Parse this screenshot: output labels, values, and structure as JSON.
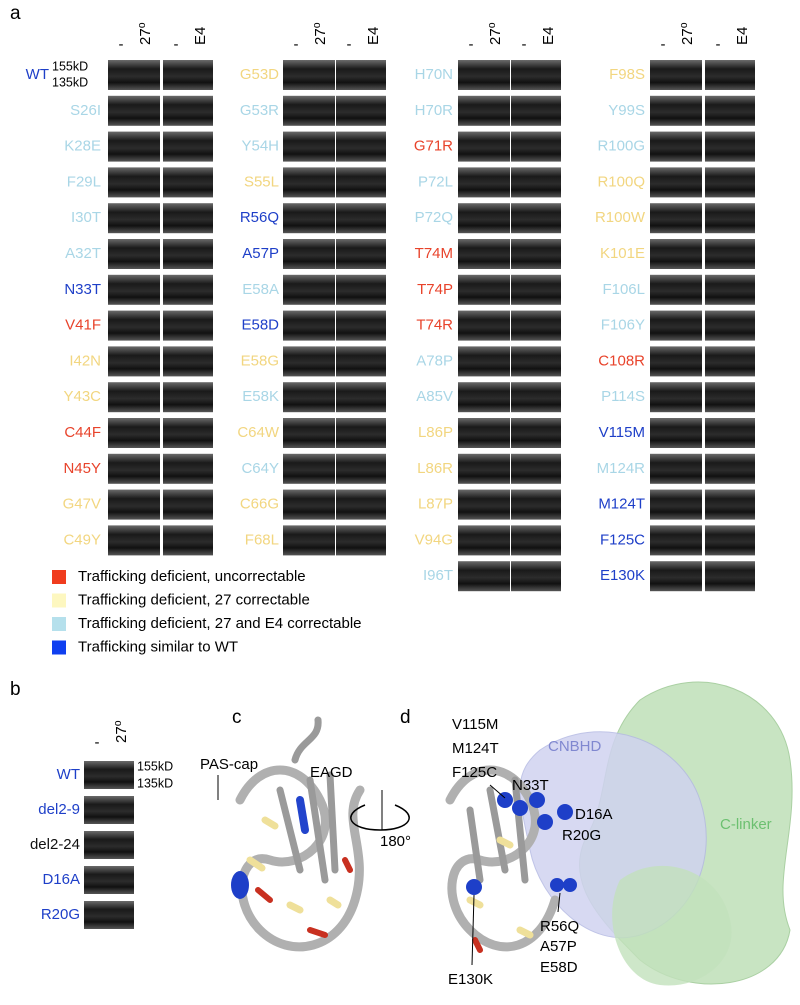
{
  "panel_a": {
    "label": "a",
    "wt_size_markers": [
      "155kD",
      "135kD"
    ],
    "columns": [
      {
        "headers": [
          "-",
          "27⁰",
          "-",
          "E4"
        ],
        "rows": [
          {
            "name": "WT",
            "color": "#1e3fc8"
          },
          {
            "name": "S26I",
            "color": "#a9d6e6"
          },
          {
            "name": "K28E",
            "color": "#a9d6e6"
          },
          {
            "name": "F29L",
            "color": "#a9d6e6"
          },
          {
            "name": "I30T",
            "color": "#a9d6e6"
          },
          {
            "name": "A32T",
            "color": "#a9d6e6"
          },
          {
            "name": "N33T",
            "color": "#1e3fc8"
          },
          {
            "name": "V41F",
            "color": "#e8432b"
          },
          {
            "name": "I42N",
            "color": "#f2d680"
          },
          {
            "name": "Y43C",
            "color": "#f2d680"
          },
          {
            "name": "C44F",
            "color": "#e8432b"
          },
          {
            "name": "N45Y",
            "color": "#e8432b"
          },
          {
            "name": "G47V",
            "color": "#f2d680"
          },
          {
            "name": "C49Y",
            "color": "#f2d680"
          }
        ]
      },
      {
        "headers": [
          "-",
          "27⁰",
          "-",
          "E4"
        ],
        "rows": [
          {
            "name": "G53D",
            "color": "#f2d680"
          },
          {
            "name": "G53R",
            "color": "#a9d6e6"
          },
          {
            "name": "Y54H",
            "color": "#a9d6e6"
          },
          {
            "name": "S55L",
            "color": "#f2d680"
          },
          {
            "name": "R56Q",
            "color": "#1e3fc8"
          },
          {
            "name": "A57P",
            "color": "#1e3fc8"
          },
          {
            "name": "E58A",
            "color": "#a9d6e6"
          },
          {
            "name": "E58D",
            "color": "#1e3fc8"
          },
          {
            "name": "E58G",
            "color": "#f2d680"
          },
          {
            "name": "E58K",
            "color": "#a9d6e6"
          },
          {
            "name": "C64W",
            "color": "#f2d680"
          },
          {
            "name": "C64Y",
            "color": "#a9d6e6"
          },
          {
            "name": "C66G",
            "color": "#f2d680"
          },
          {
            "name": "F68L",
            "color": "#f2d680"
          }
        ]
      },
      {
        "headers": [
          "-",
          "27⁰",
          "-",
          "E4"
        ],
        "rows": [
          {
            "name": "H70N",
            "color": "#a9d6e6"
          },
          {
            "name": "H70R",
            "color": "#a9d6e6"
          },
          {
            "name": "G71R",
            "color": "#e8432b"
          },
          {
            "name": "P72L",
            "color": "#a9d6e6"
          },
          {
            "name": "P72Q",
            "color": "#a9d6e6"
          },
          {
            "name": "T74M",
            "color": "#e8432b"
          },
          {
            "name": "T74P",
            "color": "#e8432b"
          },
          {
            "name": "T74R",
            "color": "#e8432b"
          },
          {
            "name": "A78P",
            "color": "#a9d6e6"
          },
          {
            "name": "A85V",
            "color": "#a9d6e6"
          },
          {
            "name": "L86P",
            "color": "#f2d680"
          },
          {
            "name": "L86R",
            "color": "#f2d680"
          },
          {
            "name": "L87P",
            "color": "#f2d680"
          },
          {
            "name": "V94G",
            "color": "#f2d680"
          },
          {
            "name": "I96T",
            "color": "#a9d6e6"
          }
        ]
      },
      {
        "headers": [
          "-",
          "27⁰",
          "-",
          "E4"
        ],
        "rows": [
          {
            "name": "F98S",
            "color": "#f2d680"
          },
          {
            "name": "Y99S",
            "color": "#a9d6e6"
          },
          {
            "name": "R100G",
            "color": "#a9d6e6"
          },
          {
            "name": "R100Q",
            "color": "#f2d680"
          },
          {
            "name": "R100W",
            "color": "#f2d680"
          },
          {
            "name": "K101E",
            "color": "#f2d680"
          },
          {
            "name": "F106L",
            "color": "#a9d6e6"
          },
          {
            "name": "F106Y",
            "color": "#a9d6e6"
          },
          {
            "name": "C108R",
            "color": "#e8432b"
          },
          {
            "name": "P114S",
            "color": "#a9d6e6"
          },
          {
            "name": "V115M",
            "color": "#1e3fc8"
          },
          {
            "name": "M124R",
            "color": "#a9d6e6"
          },
          {
            "name": "M124T",
            "color": "#1e3fc8"
          },
          {
            "name": "F125C",
            "color": "#1e3fc8"
          },
          {
            "name": "E130K",
            "color": "#1e3fc8"
          }
        ]
      }
    ],
    "legend": [
      {
        "text": "Trafficking deficient, uncorrectable",
        "color": "#f03c1e"
      },
      {
        "text": "Trafficking deficient, 27 correctable",
        "color": "#fdf7c0"
      },
      {
        "text": "Trafficking deficient, 27 and E4 correctable",
        "color": "#b5e0ec"
      },
      {
        "text": "Trafficking similar to WT",
        "color": "#0f3ff0"
      }
    ]
  },
  "panel_b": {
    "label": "b",
    "headers": [
      "-",
      "27⁰"
    ],
    "size_markers": [
      "155kD",
      "135kD"
    ],
    "rows": [
      {
        "name": "WT",
        "color": "#1e3fc8"
      },
      {
        "name": "del2-9",
        "color": "#1e3fc8"
      },
      {
        "name": "del2-24",
        "color": "#111111"
      },
      {
        "name": "D16A",
        "color": "#1e3fc8"
      },
      {
        "name": "R20G",
        "color": "#1e3fc8"
      }
    ]
  },
  "panel_c": {
    "label": "c",
    "annotations": [
      "PAS-cap",
      "EAGD",
      "180°"
    ]
  },
  "panel_d": {
    "label": "d",
    "annotations": [
      "V115M",
      "M124T",
      "F125C",
      "N33T",
      "CNBHD",
      "D16A",
      "R20G",
      "C-linker",
      "R56Q",
      "A57P",
      "E58D",
      "E130K"
    ]
  }
}
